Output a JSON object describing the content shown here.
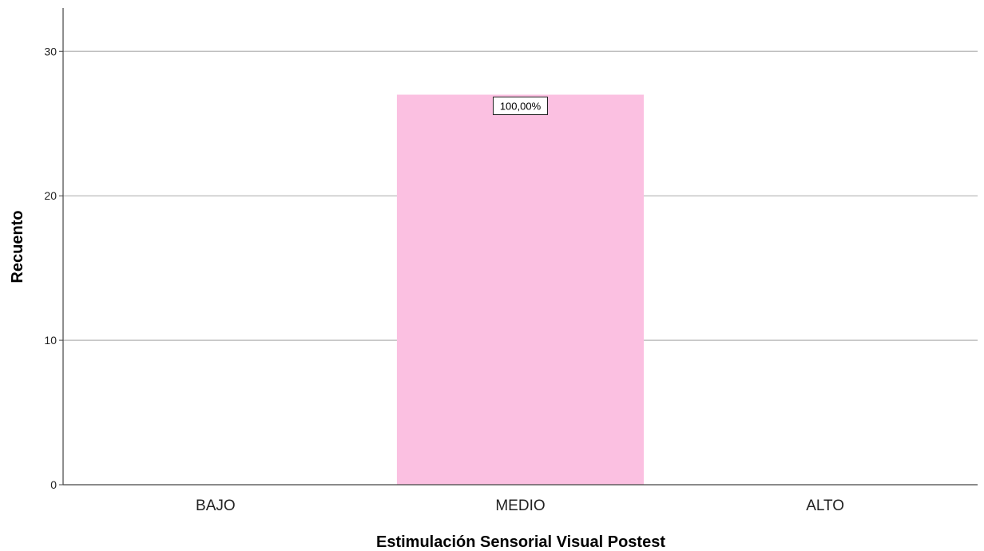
{
  "chart_data": {
    "type": "bar",
    "categories": [
      "BAJO",
      "MEDIO",
      "ALTO"
    ],
    "values": [
      0,
      27,
      0
    ],
    "data_labels": [
      "",
      "100,00%",
      ""
    ],
    "xlabel": "Estimulación Sensorial Visual Postest",
    "ylabel": "Recuento",
    "ylim": [
      0,
      33
    ],
    "yticks": [
      0,
      10,
      20,
      30
    ],
    "grid": true,
    "bar_color": "#fbc0e1",
    "gridline_color": "#b4b4b4",
    "axis_color": "#444444"
  }
}
